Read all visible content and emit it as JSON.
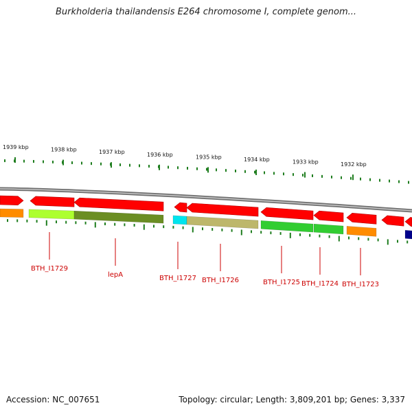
{
  "title": "Burkholderia thailandensis E264 chromosome I, complete genom...",
  "scale_labels": [
    "1939 kbp",
    "1938 kbp",
    "1937 kbp",
    "1936 kbp",
    "1935 kbp",
    "1934 kbp",
    "1933 kbp",
    "1932 kbp"
  ],
  "gene_labels": [
    "BTH_I1729",
    "lepA",
    "BTH_I1727",
    "BTH_I1726",
    "BTH_I1725",
    "BTH_I1724",
    "BTH_I1723"
  ],
  "footer": {
    "accession": "Accession: NC_007651",
    "summary": "Topology: circular; Length: 3,809,201 bp; Genes: 3,337"
  },
  "colors": {
    "cds": "#ff0000",
    "tick": "#1e7d1e",
    "label": "#cc0000",
    "backbone": "#8a8a8a",
    "cog": [
      "#ff8c00",
      "#adff2f",
      "#6b8e23",
      "#00e5ee",
      "#bdb76b",
      "#32cd32",
      "#32cd32",
      "#ff8c00",
      "#00008b"
    ]
  }
}
